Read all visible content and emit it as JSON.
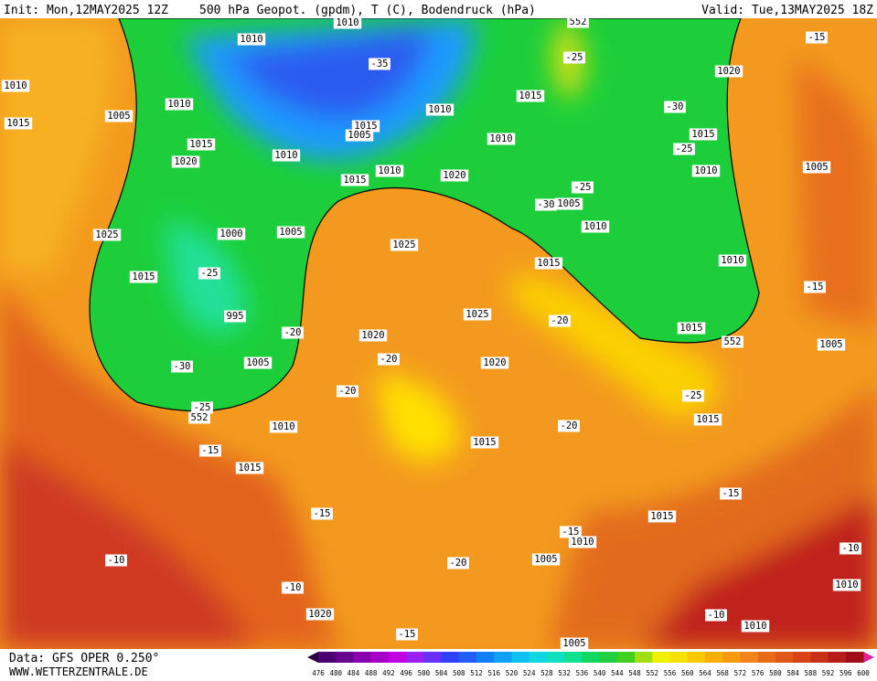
{
  "header": {
    "init": "Init: Mon,12MAY2025 12Z",
    "title": "500 hPa Geopot. (gpdm), T (C), Bodendruck (hPa)",
    "valid": "Valid: Tue,13MAY2025 18Z"
  },
  "footer": {
    "source": "Data: GFS OPER 0.250°",
    "site": "WWW.WETTERZENTRALE.DE"
  },
  "colorbar": {
    "labels": [
      476,
      480,
      484,
      488,
      492,
      496,
      500,
      504,
      508,
      512,
      516,
      520,
      524,
      528,
      532,
      536,
      540,
      544,
      548,
      552,
      556,
      560,
      564,
      568,
      572,
      576,
      580,
      584,
      588,
      592,
      596,
      600
    ]
  },
  "map_labels": [
    "1010",
    "1010",
    "552",
    "-15",
    "-25",
    "-35",
    "1020",
    "1010",
    "1010",
    "1015",
    "1010",
    "-30",
    "1005",
    "1015",
    "1015",
    "1005",
    "1010",
    "1015",
    "1015",
    "-25",
    "1020",
    "1010",
    "1010",
    "1010",
    "1005",
    "1020",
    "1015",
    "-25",
    "1005",
    "-30",
    "1010",
    "1025",
    "1000",
    "1005",
    "1025",
    "1015",
    "1010",
    "1015",
    "-25",
    "-15",
    "995",
    "1025",
    "-20",
    "-20",
    "1020",
    "1015",
    "552",
    "1005",
    "-20",
    "1005",
    "-30",
    "1020",
    "-20",
    "-25",
    "-25",
    "552",
    "1015",
    "-20",
    "1010",
    "1015",
    "-15",
    "1015",
    "-15",
    "-15",
    "1015",
    "-15",
    "1010",
    "1005",
    "-20",
    "-10",
    "-10",
    "-10",
    "1010",
    "1020",
    "-10",
    "1010",
    "-15",
    "1005"
  ]
}
